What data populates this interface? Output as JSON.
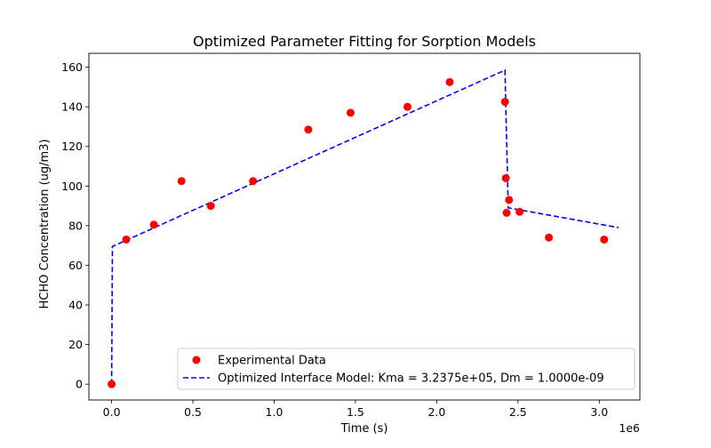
{
  "chart_data": {
    "type": "scatter",
    "title": "Optimized Parameter Fitting for Sorption Models",
    "xlabel": "Time (s)",
    "ylabel": "HCHO Concentration (ug/m3)",
    "x_offset_label": "1e6",
    "xlim": [
      -140000,
      3250000
    ],
    "ylim": [
      -8,
      167
    ],
    "x_ticks": [
      0,
      500000,
      1000000,
      1500000,
      2000000,
      2500000,
      3000000
    ],
    "x_tick_labels": [
      "0.0",
      "0.5",
      "1.0",
      "1.5",
      "2.0",
      "2.5",
      "3.0"
    ],
    "y_ticks": [
      0,
      20,
      40,
      60,
      80,
      100,
      120,
      140,
      160
    ],
    "y_tick_labels": [
      "0",
      "20",
      "40",
      "60",
      "80",
      "100",
      "120",
      "140",
      "160"
    ],
    "grid": false,
    "legend_position": "lower-right",
    "series": [
      {
        "name": "Experimental Data",
        "kind": "scatter",
        "color": "#ff0000",
        "x": [
          0,
          90000,
          260000,
          430000,
          610000,
          870000,
          1210000,
          1470000,
          1820000,
          2080000,
          2420000,
          2425000,
          2430000,
          2445000,
          2510000,
          2690000,
          3030000
        ],
        "y": [
          0,
          73,
          80.5,
          102.5,
          90,
          102.5,
          128.5,
          137,
          140,
          152.5,
          142.5,
          104,
          86.5,
          93,
          87,
          74,
          73
        ]
      },
      {
        "name": "Optimized Interface Model: Kma = 3.2375e+05, Dm = 1.0000e-09",
        "kind": "line",
        "style": "dashed",
        "color": "#0000ff",
        "x": [
          0,
          5000,
          2420000,
          2425000,
          2440000,
          3120000
        ],
        "y": [
          0,
          69.5,
          158.5,
          140,
          89,
          79
        ]
      }
    ]
  }
}
